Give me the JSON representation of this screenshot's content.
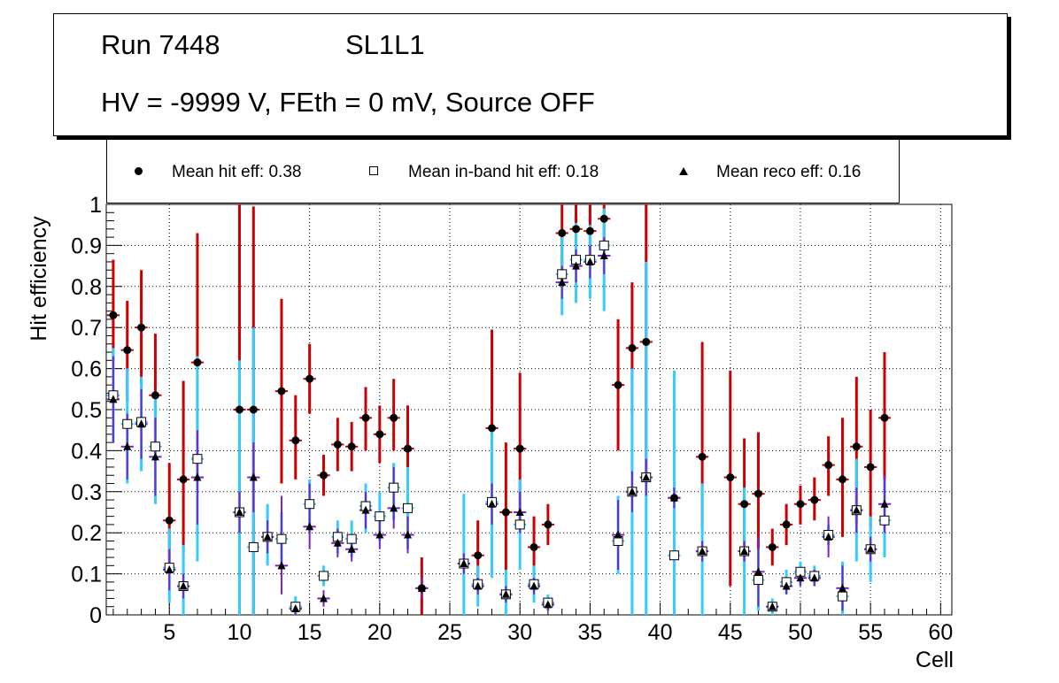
{
  "header": {
    "run": "Run 7448",
    "layer": "SL1L1",
    "conditions": "HV = -9999 V, FEth = 0 mV, Source OFF"
  },
  "legend": {
    "hit": "Mean hit  eff: 0.38",
    "inband": "Mean in-band hit eff: 0.18",
    "reco": "Mean reco eff: 0.16"
  },
  "colors": {
    "hit_error": "#cc0000",
    "inband_error": "#33ccff",
    "reco_error": "#7722cc",
    "marker": "#000000"
  },
  "chart_data": {
    "type": "scatter",
    "title": "",
    "xlabel": "Cell",
    "ylabel": "Hit efficiency",
    "xlim": [
      0.5,
      60.8
    ],
    "ylim": [
      0,
      1
    ],
    "xticks": [
      5,
      10,
      15,
      20,
      25,
      30,
      35,
      40,
      45,
      50,
      55,
      60
    ],
    "yticks": [
      0,
      0.1,
      0.2,
      0.3,
      0.4,
      0.5,
      0.6,
      0.7,
      0.8,
      0.9,
      1
    ],
    "ytick_labels": [
      "0",
      "0.1",
      "0.2",
      "0.3",
      "0.4",
      "0.5",
      "0.6",
      "0.7",
      "0.8",
      "0.9",
      "1"
    ],
    "grid": true,
    "series": [
      {
        "name": "Mean hit  eff: 0.38",
        "marker": "circle",
        "points": [
          {
            "x": 1,
            "y": 0.73,
            "lo": 0.62,
            "hi": 0.865
          },
          {
            "x": 2,
            "y": 0.645,
            "lo": 0.52,
            "hi": 0.765
          },
          {
            "x": 3,
            "y": 0.7,
            "lo": 0.56,
            "hi": 0.84
          },
          {
            "x": 4,
            "y": 0.535,
            "lo": 0.4,
            "hi": 0.685
          },
          {
            "x": 5,
            "y": 0.23,
            "lo": 0.1,
            "hi": 0.37
          },
          {
            "x": 6,
            "y": 0.33,
            "lo": 0.15,
            "hi": 0.57
          },
          {
            "x": 7,
            "y": 0.615,
            "lo": 0.32,
            "hi": 0.93
          },
          {
            "x": 10,
            "y": 0.5,
            "lo": 0.0,
            "hi": 1.0
          },
          {
            "x": 11,
            "y": 0.5,
            "lo": 0.0,
            "hi": 0.995
          },
          {
            "x": 13,
            "y": 0.545,
            "lo": 0.32,
            "hi": 0.77
          },
          {
            "x": 14,
            "y": 0.425,
            "lo": 0.33,
            "hi": 0.535
          },
          {
            "x": 15,
            "y": 0.575,
            "lo": 0.49,
            "hi": 0.66
          },
          {
            "x": 16,
            "y": 0.34,
            "lo": 0.29,
            "hi": 0.39
          },
          {
            "x": 17,
            "y": 0.415,
            "lo": 0.35,
            "hi": 0.48
          },
          {
            "x": 18,
            "y": 0.41,
            "lo": 0.35,
            "hi": 0.47
          },
          {
            "x": 19,
            "y": 0.48,
            "lo": 0.4,
            "hi": 0.555
          },
          {
            "x": 20,
            "y": 0.44,
            "lo": 0.37,
            "hi": 0.51
          },
          {
            "x": 21,
            "y": 0.48,
            "lo": 0.4,
            "hi": 0.575
          },
          {
            "x": 22,
            "y": 0.405,
            "lo": 0.31,
            "hi": 0.51
          },
          {
            "x": 23,
            "y": 0.065,
            "lo": 0.0,
            "hi": 0.14
          },
          {
            "x": 27,
            "y": 0.145,
            "lo": 0.06,
            "hi": 0.23
          },
          {
            "x": 28,
            "y": 0.455,
            "lo": 0.25,
            "hi": 0.695
          },
          {
            "x": 29,
            "y": 0.25,
            "lo": 0.11,
            "hi": 0.42
          },
          {
            "x": 30,
            "y": 0.405,
            "lo": 0.23,
            "hi": 0.59
          },
          {
            "x": 31,
            "y": 0.165,
            "lo": 0.09,
            "hi": 0.24
          },
          {
            "x": 32,
            "y": 0.22,
            "lo": 0.17,
            "hi": 0.27
          },
          {
            "x": 33,
            "y": 0.93,
            "lo": 0.83,
            "hi": 1.0
          },
          {
            "x": 34,
            "y": 0.94,
            "lo": 0.86,
            "hi": 1.0
          },
          {
            "x": 35,
            "y": 0.935,
            "lo": 0.85,
            "hi": 1.0
          },
          {
            "x": 36,
            "y": 0.965,
            "lo": 0.89,
            "hi": 1.0
          },
          {
            "x": 37,
            "y": 0.56,
            "lo": 0.4,
            "hi": 0.72
          },
          {
            "x": 38,
            "y": 0.65,
            "lo": 0.49,
            "hi": 0.81
          },
          {
            "x": 39,
            "y": 0.665,
            "lo": 0.33,
            "hi": 1.0
          },
          {
            "x": 41,
            "y": 0.285,
            "lo": 0.28,
            "hi": 0.29
          },
          {
            "x": 43,
            "y": 0.385,
            "lo": 0.21,
            "hi": 0.665
          },
          {
            "x": 45,
            "y": 0.335,
            "lo": 0.07,
            "hi": 0.595
          },
          {
            "x": 46,
            "y": 0.27,
            "lo": 0.13,
            "hi": 0.43
          },
          {
            "x": 47,
            "y": 0.295,
            "lo": 0.16,
            "hi": 0.445
          },
          {
            "x": 48,
            "y": 0.165,
            "lo": 0.12,
            "hi": 0.21
          },
          {
            "x": 49,
            "y": 0.22,
            "lo": 0.17,
            "hi": 0.27
          },
          {
            "x": 50,
            "y": 0.27,
            "lo": 0.22,
            "hi": 0.315
          },
          {
            "x": 51,
            "y": 0.28,
            "lo": 0.23,
            "hi": 0.335
          },
          {
            "x": 52,
            "y": 0.365,
            "lo": 0.29,
            "hi": 0.435
          },
          {
            "x": 53,
            "y": 0.33,
            "lo": 0.19,
            "hi": 0.48
          },
          {
            "x": 54,
            "y": 0.41,
            "lo": 0.22,
            "hi": 0.58
          },
          {
            "x": 55,
            "y": 0.36,
            "lo": 0.21,
            "hi": 0.5
          },
          {
            "x": 56,
            "y": 0.48,
            "lo": 0.14,
            "hi": 0.64
          }
        ]
      },
      {
        "name": "Mean in-band hit eff: 0.18",
        "marker": "open-square",
        "points": [
          {
            "x": 1,
            "y": 0.535,
            "lo": 0.42,
            "hi": 0.65
          },
          {
            "x": 2,
            "y": 0.465,
            "lo": 0.32,
            "hi": 0.6
          },
          {
            "x": 3,
            "y": 0.47,
            "lo": 0.35,
            "hi": 0.58
          },
          {
            "x": 4,
            "y": 0.41,
            "lo": 0.27,
            "hi": 0.54
          },
          {
            "x": 5,
            "y": 0.115,
            "lo": 0.03,
            "hi": 0.21
          },
          {
            "x": 6,
            "y": 0.07,
            "lo": 0.0,
            "hi": 0.17
          },
          {
            "x": 7,
            "y": 0.38,
            "lo": 0.13,
            "hi": 0.63
          },
          {
            "x": 10,
            "y": 0.25,
            "lo": 0.0,
            "hi": 0.62
          },
          {
            "x": 11,
            "y": 0.165,
            "lo": 0.0,
            "hi": 0.7
          },
          {
            "x": 12,
            "y": 0.19,
            "lo": 0.12,
            "hi": 0.27
          },
          {
            "x": 13,
            "y": 0.185,
            "lo": 0.12,
            "hi": 0.25
          },
          {
            "x": 14,
            "y": 0.02,
            "lo": 0.0,
            "hi": 0.045
          },
          {
            "x": 15,
            "y": 0.27,
            "lo": 0.2,
            "hi": 0.33
          },
          {
            "x": 16,
            "y": 0.095,
            "lo": 0.07,
            "hi": 0.12
          },
          {
            "x": 17,
            "y": 0.19,
            "lo": 0.15,
            "hi": 0.23
          },
          {
            "x": 18,
            "y": 0.185,
            "lo": 0.14,
            "hi": 0.23
          },
          {
            "x": 19,
            "y": 0.265,
            "lo": 0.2,
            "hi": 0.32
          },
          {
            "x": 20,
            "y": 0.24,
            "lo": 0.18,
            "hi": 0.3
          },
          {
            "x": 21,
            "y": 0.31,
            "lo": 0.23,
            "hi": 0.37
          },
          {
            "x": 22,
            "y": 0.26,
            "lo": 0.16,
            "hi": 0.36
          },
          {
            "x": 26,
            "y": 0.125,
            "lo": 0.0,
            "hi": 0.295
          },
          {
            "x": 27,
            "y": 0.075,
            "lo": 0.02,
            "hi": 0.12
          },
          {
            "x": 28,
            "y": 0.275,
            "lo": 0.09,
            "hi": 0.46
          },
          {
            "x": 29,
            "y": 0.05,
            "lo": 0.0,
            "hi": 0.11
          },
          {
            "x": 30,
            "y": 0.22,
            "lo": 0.11,
            "hi": 0.33
          },
          {
            "x": 31,
            "y": 0.075,
            "lo": 0.03,
            "hi": 0.12
          },
          {
            "x": 32,
            "y": 0.03,
            "lo": 0.01,
            "hi": 0.05
          },
          {
            "x": 33,
            "y": 0.83,
            "lo": 0.73,
            "hi": 0.93
          },
          {
            "x": 34,
            "y": 0.865,
            "lo": 0.76,
            "hi": 0.955
          },
          {
            "x": 35,
            "y": 0.865,
            "lo": 0.77,
            "hi": 0.95
          },
          {
            "x": 36,
            "y": 0.9,
            "lo": 0.74,
            "hi": 0.99
          },
          {
            "x": 37,
            "y": 0.18,
            "lo": 0.1,
            "hi": 0.29
          },
          {
            "x": 38,
            "y": 0.3,
            "lo": 0.0,
            "hi": 0.6
          },
          {
            "x": 39,
            "y": 0.335,
            "lo": 0.0,
            "hi": 0.86
          },
          {
            "x": 41,
            "y": 0.145,
            "lo": 0.0,
            "hi": 0.595
          },
          {
            "x": 43,
            "y": 0.155,
            "lo": 0.0,
            "hi": 0.32
          },
          {
            "x": 46,
            "y": 0.155,
            "lo": 0.0,
            "hi": 0.31
          },
          {
            "x": 47,
            "y": 0.085,
            "lo": 0.01,
            "hi": 0.16
          },
          {
            "x": 48,
            "y": 0.02,
            "lo": 0.0,
            "hi": 0.04
          },
          {
            "x": 49,
            "y": 0.08,
            "lo": 0.05,
            "hi": 0.11
          },
          {
            "x": 50,
            "y": 0.105,
            "lo": 0.07,
            "hi": 0.13
          },
          {
            "x": 51,
            "y": 0.095,
            "lo": 0.07,
            "hi": 0.12
          },
          {
            "x": 52,
            "y": 0.195,
            "lo": 0.17,
            "hi": 0.22
          },
          {
            "x": 53,
            "y": 0.045,
            "lo": 0.0,
            "hi": 0.13
          },
          {
            "x": 54,
            "y": 0.255,
            "lo": 0.13,
            "hi": 0.38
          },
          {
            "x": 55,
            "y": 0.16,
            "lo": 0.08,
            "hi": 0.24
          },
          {
            "x": 56,
            "y": 0.23,
            "lo": 0.14,
            "hi": 0.33
          }
        ]
      },
      {
        "name": "Mean reco eff: 0.16",
        "marker": "triangle",
        "points": [
          {
            "x": 1,
            "y": 0.525,
            "lo": 0.42,
            "hi": 0.63
          },
          {
            "x": 2,
            "y": 0.41,
            "lo": 0.33,
            "hi": 0.49
          },
          {
            "x": 3,
            "y": 0.465,
            "lo": 0.38,
            "hi": 0.55
          },
          {
            "x": 4,
            "y": 0.385,
            "lo": 0.29,
            "hi": 0.48
          },
          {
            "x": 5,
            "y": 0.11,
            "lo": 0.06,
            "hi": 0.16
          },
          {
            "x": 6,
            "y": 0.07,
            "lo": 0.04,
            "hi": 0.1
          },
          {
            "x": 7,
            "y": 0.335,
            "lo": 0.22,
            "hi": 0.45
          },
          {
            "x": 10,
            "y": 0.25,
            "lo": 0.2,
            "hi": 0.3
          },
          {
            "x": 11,
            "y": 0.335,
            "lo": 0.25,
            "hi": 0.42
          },
          {
            "x": 12,
            "y": 0.19,
            "lo": 0.15,
            "hi": 0.23
          },
          {
            "x": 13,
            "y": 0.12,
            "lo": 0.05,
            "hi": 0.29
          },
          {
            "x": 14,
            "y": 0.015,
            "lo": 0.0,
            "hi": 0.03
          },
          {
            "x": 15,
            "y": 0.215,
            "lo": 0.16,
            "hi": 0.32
          },
          {
            "x": 16,
            "y": 0.04,
            "lo": 0.02,
            "hi": 0.06
          },
          {
            "x": 17,
            "y": 0.175,
            "lo": 0.14,
            "hi": 0.21
          },
          {
            "x": 18,
            "y": 0.16,
            "lo": 0.13,
            "hi": 0.19
          },
          {
            "x": 19,
            "y": 0.255,
            "lo": 0.21,
            "hi": 0.3
          },
          {
            "x": 20,
            "y": 0.195,
            "lo": 0.16,
            "hi": 0.23
          },
          {
            "x": 21,
            "y": 0.26,
            "lo": 0.21,
            "hi": 0.36
          },
          {
            "x": 22,
            "y": 0.195,
            "lo": 0.15,
            "hi": 0.24
          },
          {
            "x": 23,
            "y": 0.065,
            "lo": 0.04,
            "hi": 0.09
          },
          {
            "x": 26,
            "y": 0.125,
            "lo": 0.1,
            "hi": 0.15
          },
          {
            "x": 27,
            "y": 0.07,
            "lo": 0.05,
            "hi": 0.09
          },
          {
            "x": 28,
            "y": 0.27,
            "lo": 0.22,
            "hi": 0.32
          },
          {
            "x": 29,
            "y": 0.05,
            "lo": 0.03,
            "hi": 0.07
          },
          {
            "x": 30,
            "y": 0.25,
            "lo": 0.2,
            "hi": 0.3
          },
          {
            "x": 31,
            "y": 0.07,
            "lo": 0.05,
            "hi": 0.09
          },
          {
            "x": 32,
            "y": 0.025,
            "lo": 0.01,
            "hi": 0.04
          },
          {
            "x": 33,
            "y": 0.81,
            "lo": 0.77,
            "hi": 0.85
          },
          {
            "x": 34,
            "y": 0.85,
            "lo": 0.81,
            "hi": 0.89
          },
          {
            "x": 35,
            "y": 0.86,
            "lo": 0.82,
            "hi": 0.9
          },
          {
            "x": 36,
            "y": 0.875,
            "lo": 0.83,
            "hi": 0.92
          },
          {
            "x": 37,
            "y": 0.195,
            "lo": 0.11,
            "hi": 0.28
          },
          {
            "x": 38,
            "y": 0.3,
            "lo": 0.25,
            "hi": 0.35
          },
          {
            "x": 39,
            "y": 0.335,
            "lo": 0.29,
            "hi": 0.38
          },
          {
            "x": 41,
            "y": 0.285,
            "lo": 0.26,
            "hi": 0.31
          },
          {
            "x": 43,
            "y": 0.155,
            "lo": 0.13,
            "hi": 0.18
          },
          {
            "x": 46,
            "y": 0.155,
            "lo": 0.13,
            "hi": 0.18
          },
          {
            "x": 47,
            "y": 0.105,
            "lo": 0.02,
            "hi": 0.19
          },
          {
            "x": 48,
            "y": 0.02,
            "lo": 0.01,
            "hi": 0.03
          },
          {
            "x": 49,
            "y": 0.07,
            "lo": 0.05,
            "hi": 0.09
          },
          {
            "x": 50,
            "y": 0.09,
            "lo": 0.07,
            "hi": 0.11
          },
          {
            "x": 51,
            "y": 0.09,
            "lo": 0.07,
            "hi": 0.11
          },
          {
            "x": 52,
            "y": 0.19,
            "lo": 0.14,
            "hi": 0.24
          },
          {
            "x": 53,
            "y": 0.065,
            "lo": 0.01,
            "hi": 0.12
          },
          {
            "x": 54,
            "y": 0.255,
            "lo": 0.2,
            "hi": 0.31
          },
          {
            "x": 55,
            "y": 0.16,
            "lo": 0.13,
            "hi": 0.19
          },
          {
            "x": 56,
            "y": 0.27,
            "lo": 0.2,
            "hi": 0.34
          }
        ]
      }
    ]
  }
}
